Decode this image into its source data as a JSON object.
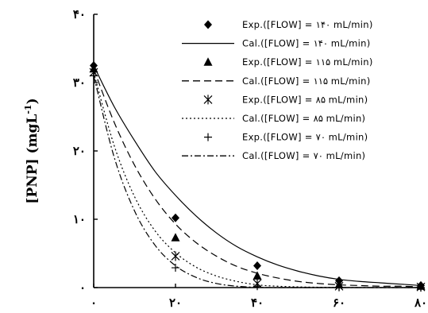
{
  "chart_data": {
    "type": "line",
    "title": "",
    "xlabel": "",
    "ylabel": "[PNP] (mgL-1)",
    "ylabel_parts": {
      "main": "[PNP] (mgL",
      "sup": "-1",
      "tail": ")"
    },
    "xlim": [
      0,
      80
    ],
    "ylim": [
      0,
      40
    ],
    "x_ticks": [
      0,
      20,
      40,
      60,
      80
    ],
    "x_tick_labels": [
      "۰",
      "۲۰",
      "۴۰",
      "۶۰",
      "۸۰"
    ],
    "y_ticks": [
      0,
      10,
      20,
      30,
      40
    ],
    "y_tick_labels": [
      "۰",
      "۱۰",
      "۲۰",
      "۳۰",
      "۴۰"
    ],
    "grid": false,
    "legend_position": "top-right",
    "series": [
      {
        "name": "Exp.([FLOW] = ۱۴۰ mL/min)",
        "kind": "exp",
        "marker": "diamond",
        "x": [
          0,
          20,
          40,
          60,
          80
        ],
        "y": [
          32.5,
          10.2,
          3.2,
          1.0,
          0.3
        ]
      },
      {
        "name": "Cal.([FLOW] = ۱۴۰ mL/min)",
        "kind": "cal",
        "dash": "solid",
        "x": [
          0,
          5,
          10,
          15,
          20,
          25,
          30,
          35,
          40,
          45,
          50,
          55,
          60,
          65,
          70,
          75,
          80
        ],
        "y": [
          32.5,
          26.5,
          21.5,
          17.0,
          13.5,
          10.5,
          8.0,
          6.0,
          4.5,
          3.3,
          2.4,
          1.7,
          1.2,
          0.9,
          0.7,
          0.5,
          0.3
        ]
      },
      {
        "name": "Exp.([FLOW] = ۱۱۵ mL/min)",
        "kind": "exp",
        "marker": "triangle",
        "x": [
          0,
          20,
          40,
          60,
          80
        ],
        "y": [
          32.0,
          7.3,
          1.7,
          0.4,
          0.2
        ]
      },
      {
        "name": "Cal.([FLOW] = ۱۱۵ mL/min)",
        "kind": "cal",
        "dash": "dash",
        "x": [
          0,
          5,
          10,
          15,
          20,
          25,
          30,
          35,
          40,
          45,
          50,
          55,
          60,
          65,
          70,
          75,
          80
        ],
        "y": [
          32.0,
          24.2,
          17.9,
          13.0,
          9.3,
          6.6,
          4.6,
          3.1,
          2.1,
          1.4,
          0.9,
          0.6,
          0.4,
          0.3,
          0.2,
          0.2,
          0.1
        ]
      },
      {
        "name": "Exp.([FLOW] = ۸۵ mL/min)",
        "kind": "exp",
        "marker": "asterisk",
        "x": [
          0,
          20,
          40,
          60,
          80
        ],
        "y": [
          31.5,
          4.6,
          0.6,
          0.2,
          0.1
        ]
      },
      {
        "name": "Cal.([FLOW] = ۸۵ mL/min)",
        "kind": "cal",
        "dash": "dot",
        "x": [
          0,
          5,
          10,
          15,
          20,
          25,
          30,
          35,
          40,
          45,
          50,
          55,
          60,
          65,
          70,
          75,
          80
        ],
        "y": [
          31.5,
          20.8,
          13.3,
          8.3,
          5.1,
          3.0,
          1.7,
          0.9,
          0.4,
          0.2,
          0.1,
          0.05,
          0.02,
          0.01,
          0.0,
          0.0,
          0.0
        ]
      },
      {
        "name": "Exp.([FLOW] = ۷۰ mL/min)",
        "kind": "exp",
        "marker": "plus",
        "x": [
          0,
          20,
          40,
          60,
          80
        ],
        "y": [
          31.0,
          2.9,
          0.2,
          0.05,
          0.0
        ]
      },
      {
        "name": "Cal.([FLOW] = ۷۰ mL/min)",
        "kind": "cal",
        "dash": "dashdot",
        "x": [
          0,
          5,
          10,
          15,
          20,
          25,
          30,
          35,
          40,
          45,
          50,
          55,
          60,
          65,
          70,
          75,
          80
        ],
        "y": [
          31.0,
          19.1,
          11.2,
          6.2,
          3.2,
          1.5,
          0.6,
          0.2,
          0.05,
          0.0,
          0.0,
          0.0,
          0.0,
          0.0,
          0.0,
          0.0,
          0.0
        ]
      }
    ]
  }
}
